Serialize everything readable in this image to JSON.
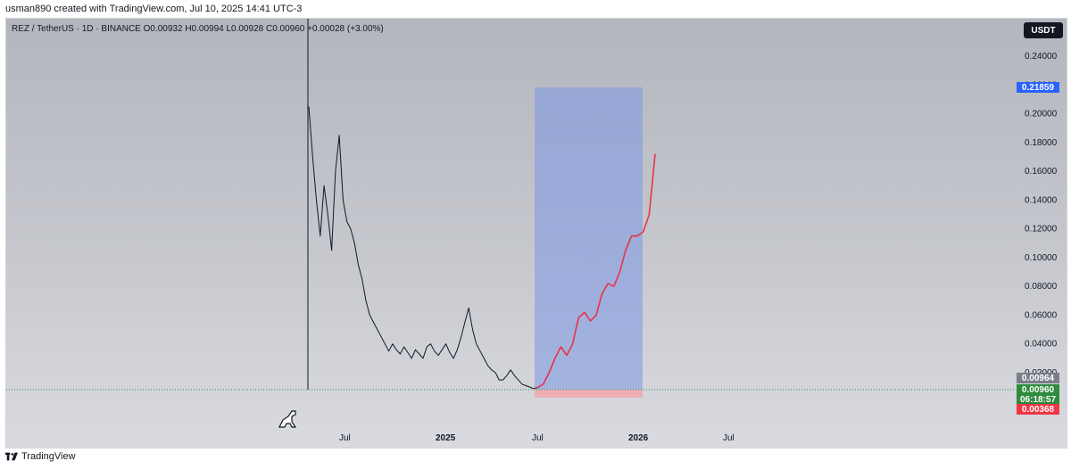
{
  "header": {
    "attribution": "usman890 created with TradingView.com, Jul 10, 2025 14:41 UTC-3"
  },
  "legend": {
    "text": "REZ / TetherUS · 1D · BINANCE  O0.00932  H0.00994  L0.00928  C0.00960  +0.00028 (+3.00%)"
  },
  "currency_badge": "USDT",
  "price_tags": {
    "target": {
      "value": "0.21859",
      "color": "#2962ff"
    },
    "prev": {
      "value": "0.00964",
      "color": "#7b7e87"
    },
    "current": {
      "value": "0.00960",
      "color": "#2e8b3e"
    },
    "countdown": {
      "value": "06:18:57",
      "color": "#2e8b3e"
    },
    "stop": {
      "value": "0.00368",
      "color": "#f23645"
    }
  },
  "footer": {
    "brand": "TradingView"
  },
  "chart_data": {
    "type": "line",
    "title": "REZ / TetherUS · 1D · BINANCE",
    "y_axis": {
      "ticks": [
        "0.24000",
        "0.22000",
        "0.20000",
        "0.18000",
        "0.16000",
        "0.14000",
        "0.12000",
        "0.10000",
        "0.08000",
        "0.06000",
        "0.04000",
        "0.02000"
      ],
      "range": [
        0.0,
        0.26
      ],
      "position": "right"
    },
    "x_axis": {
      "ticks": [
        "Jul",
        "2025",
        "Jul",
        "2026",
        "Jul"
      ]
    },
    "series": [
      {
        "color": "#131722",
        "points": [
          [
            0,
            0.205
          ],
          [
            1,
            0.17
          ],
          [
            2,
            0.14
          ],
          [
            3,
            0.115
          ],
          [
            4,
            0.15
          ],
          [
            5,
            0.13
          ],
          [
            6,
            0.105
          ],
          [
            7,
            0.16
          ],
          [
            8,
            0.185
          ],
          [
            9,
            0.14
          ],
          [
            10,
            0.125
          ],
          [
            11,
            0.12
          ],
          [
            12,
            0.11
          ],
          [
            13,
            0.095
          ],
          [
            14,
            0.085
          ],
          [
            15,
            0.07
          ],
          [
            16,
            0.06
          ],
          [
            17,
            0.055
          ],
          [
            18,
            0.05
          ],
          [
            19,
            0.045
          ],
          [
            20,
            0.04
          ],
          [
            21,
            0.035
          ],
          [
            22,
            0.04
          ],
          [
            23,
            0.036
          ],
          [
            24,
            0.033
          ],
          [
            25,
            0.038
          ],
          [
            26,
            0.034
          ],
          [
            27,
            0.03
          ],
          [
            28,
            0.036
          ],
          [
            29,
            0.033
          ],
          [
            30,
            0.03
          ],
          [
            31,
            0.038
          ],
          [
            32,
            0.04
          ],
          [
            33,
            0.035
          ],
          [
            34,
            0.032
          ],
          [
            35,
            0.036
          ],
          [
            36,
            0.04
          ],
          [
            37,
            0.034
          ],
          [
            38,
            0.03
          ],
          [
            39,
            0.036
          ],
          [
            40,
            0.045
          ],
          [
            41,
            0.055
          ],
          [
            42,
            0.065
          ],
          [
            43,
            0.05
          ],
          [
            44,
            0.04
          ],
          [
            45,
            0.035
          ],
          [
            46,
            0.03
          ],
          [
            47,
            0.025
          ],
          [
            48,
            0.022
          ],
          [
            49,
            0.02
          ],
          [
            50,
            0.015
          ],
          [
            51,
            0.015
          ],
          [
            52,
            0.018
          ],
          [
            53,
            0.022
          ],
          [
            54,
            0.018
          ],
          [
            55,
            0.015
          ],
          [
            56,
            0.012
          ],
          [
            57,
            0.011
          ],
          [
            58,
            0.01
          ],
          [
            59,
            0.009
          ],
          [
            60,
            0.0096
          ]
        ]
      },
      {
        "color": "#e8334a",
        "points": [
          [
            0,
            0.0096
          ],
          [
            1,
            0.012
          ],
          [
            2,
            0.02
          ],
          [
            3,
            0.03
          ],
          [
            4,
            0.038
          ],
          [
            5,
            0.032
          ],
          [
            6,
            0.04
          ],
          [
            7,
            0.058
          ],
          [
            8,
            0.062
          ],
          [
            9,
            0.056
          ],
          [
            10,
            0.06
          ],
          [
            11,
            0.075
          ],
          [
            12,
            0.082
          ],
          [
            13,
            0.08
          ],
          [
            14,
            0.09
          ],
          [
            15,
            0.105
          ],
          [
            16,
            0.115
          ],
          [
            17,
            0.115
          ],
          [
            18,
            0.118
          ],
          [
            19,
            0.13
          ],
          [
            20,
            0.172
          ]
        ]
      }
    ],
    "position_box": {
      "entry": 0.0096,
      "target": 0.21859,
      "stop": 0.00368
    },
    "current_price": 0.0096,
    "grid": false
  }
}
